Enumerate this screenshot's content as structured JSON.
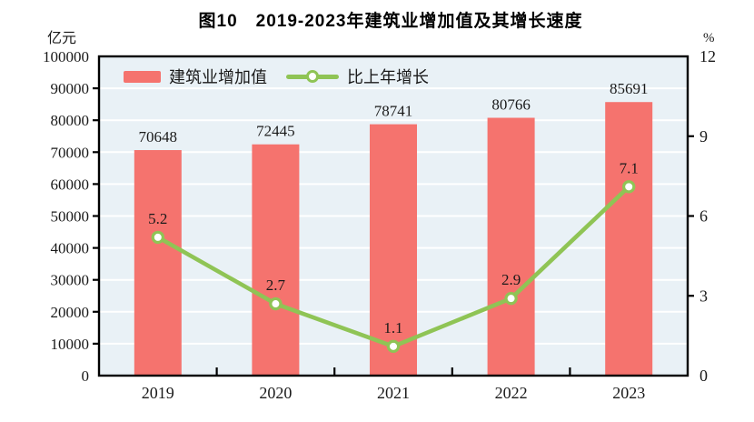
{
  "figure": {
    "title": "图10　2019-2023年建筑业增加值及其增长速度",
    "left_unit": "亿元",
    "right_unit": "%"
  },
  "legend": {
    "bar_label": "建筑业增加值",
    "line_label": "比上年增长"
  },
  "colors": {
    "bar": "#F5736E",
    "line": "#8FC455",
    "marker_fill": "#FFFFFF",
    "plot_background": "#E9F1F6",
    "gridline": "#FFFFFF",
    "frame": "#000000",
    "text": "#1A1A1A"
  },
  "chart_data": {
    "type": "bar",
    "combo": "bar+line",
    "title": "图10　2019-2023年建筑业增加值及其增长速度",
    "categories": [
      "2019",
      "2020",
      "2021",
      "2022",
      "2023"
    ],
    "series": [
      {
        "name": "建筑业增加值",
        "type": "bar",
        "axis": "left",
        "unit": "亿元",
        "values": [
          70648,
          72445,
          78741,
          80766,
          85691
        ]
      },
      {
        "name": "比上年增长",
        "type": "line",
        "axis": "right",
        "unit": "%",
        "values": [
          5.2,
          2.7,
          1.1,
          2.9,
          7.1
        ]
      }
    ],
    "left_axis": {
      "unit": "亿元",
      "min": 0,
      "max": 100000,
      "step": 10000,
      "ticks": [
        0,
        10000,
        20000,
        30000,
        40000,
        50000,
        60000,
        70000,
        80000,
        90000,
        100000
      ]
    },
    "right_axis": {
      "unit": "%",
      "min": 0,
      "max": 12,
      "step": 3,
      "ticks": [
        0,
        3,
        6,
        9,
        12
      ]
    },
    "grid": true,
    "data_labels": true,
    "legend_position": "inside-top-left"
  }
}
